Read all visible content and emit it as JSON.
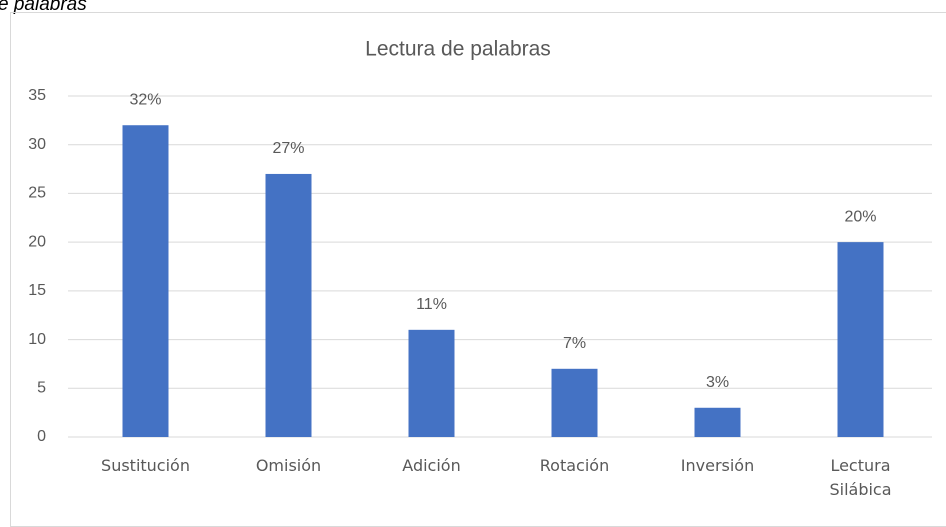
{
  "caption": "e palabras",
  "chart_data": {
    "type": "bar",
    "title": "Lectura de palabras",
    "categories": [
      "Sustitución",
      "Omisión",
      "Adición",
      "Rotación",
      "Inversión",
      "Lectura Silábica"
    ],
    "values": [
      32,
      27,
      11,
      7,
      3,
      20
    ],
    "value_labels": [
      "32%",
      "27%",
      "11%",
      "7%",
      "3%",
      "20%"
    ],
    "color": "#4472c4",
    "ylim": [
      0,
      35
    ],
    "yticks": [
      0,
      5,
      10,
      15,
      20,
      25,
      30,
      35
    ],
    "grid": true
  }
}
